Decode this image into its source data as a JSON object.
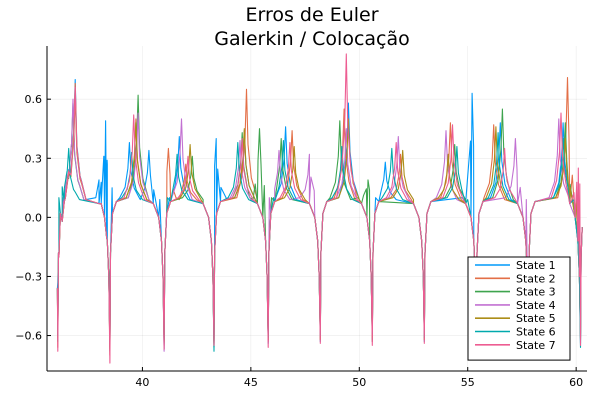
{
  "chart_data": {
    "type": "line",
    "title_line1": "Erros de Euler",
    "title_line2": "Galerkin / Colocação",
    "xlabel": "",
    "ylabel": "",
    "xlim": [
      35.6,
      60.5
    ],
    "ylim": [
      -0.78,
      0.87
    ],
    "x_ticks": [
      40,
      45,
      50,
      55,
      60
    ],
    "x_tick_labels": [
      "40",
      "45",
      "50",
      "55",
      "60"
    ],
    "y_ticks": [
      -0.6,
      -0.3,
      0.0,
      0.3,
      0.6
    ],
    "y_tick_labels": [
      "−0.6",
      "−0.3",
      "0.0",
      "0.3",
      "0.6"
    ],
    "grid": true,
    "legend_position": "bottom-right",
    "series": [
      {
        "name": "State 1",
        "color": "#009AFA",
        "spikes": [
          [
            36.9,
            0.7
          ],
          [
            38.3,
            0.49
          ],
          [
            39.4,
            0.38
          ],
          [
            40.3,
            0.34
          ],
          [
            41.7,
            0.41
          ],
          [
            43.4,
            0.4
          ],
          [
            44.7,
            0.44
          ],
          [
            46.6,
            0.46
          ],
          [
            49.5,
            0.58
          ],
          [
            51.2,
            0.28
          ],
          [
            55.2,
            0.63
          ],
          [
            56.5,
            0.48
          ],
          [
            59.4,
            0.48
          ]
        ],
        "troughs": [
          [
            36.1,
            -0.33
          ],
          [
            38.5,
            -0.68
          ],
          [
            41.0,
            -0.67
          ],
          [
            43.3,
            -0.66
          ],
          [
            45.8,
            -0.64
          ],
          [
            48.2,
            -0.63
          ],
          [
            50.6,
            -0.63
          ],
          [
            53.0,
            -0.63
          ],
          [
            55.4,
            -0.61
          ],
          [
            57.8,
            -0.62
          ],
          [
            60.2,
            -0.64
          ]
        ]
      },
      {
        "name": "State 2",
        "color": "#E36F47",
        "spikes": [
          [
            36.9,
            0.68
          ],
          [
            39.7,
            0.5
          ],
          [
            41.2,
            0.35
          ],
          [
            42.0,
            0.27
          ],
          [
            44.8,
            0.65
          ],
          [
            46.9,
            0.44
          ],
          [
            49.3,
            0.55
          ],
          [
            51.9,
            0.32
          ],
          [
            54.2,
            0.48
          ],
          [
            56.2,
            0.47
          ],
          [
            59.6,
            0.71
          ]
        ],
        "troughs": [
          [
            36.1,
            -0.66
          ],
          [
            38.5,
            -0.7
          ],
          [
            41.0,
            -0.65
          ],
          [
            43.3,
            -0.64
          ],
          [
            45.8,
            -0.63
          ],
          [
            48.2,
            -0.62
          ],
          [
            50.6,
            -0.63
          ],
          [
            53.0,
            -0.62
          ],
          [
            55.4,
            -0.6
          ],
          [
            57.8,
            -0.61
          ],
          [
            60.2,
            -0.62
          ]
        ]
      },
      {
        "name": "State 3",
        "color": "#3EA44E",
        "spikes": [
          [
            36.8,
            0.58
          ],
          [
            39.8,
            0.62
          ],
          [
            42.3,
            0.31
          ],
          [
            44.6,
            0.43
          ],
          [
            45.4,
            0.45
          ],
          [
            46.4,
            0.4
          ],
          [
            49.1,
            0.49
          ],
          [
            50.4,
            0.19
          ],
          [
            54.4,
            0.37
          ],
          [
            56.6,
            0.55
          ],
          [
            59.5,
            0.48
          ]
        ],
        "troughs": [
          [
            36.1,
            -0.63
          ],
          [
            38.5,
            -0.66
          ],
          [
            41.0,
            -0.64
          ],
          [
            43.3,
            -0.63
          ],
          [
            45.8,
            -0.62
          ],
          [
            48.2,
            -0.61
          ],
          [
            50.6,
            -0.62
          ],
          [
            53.0,
            -0.61
          ],
          [
            55.4,
            -0.59
          ],
          [
            57.8,
            -0.6
          ],
          [
            60.2,
            -0.61
          ]
        ]
      },
      {
        "name": "State 4",
        "color": "#C271D2",
        "spikes": [
          [
            36.8,
            0.6
          ],
          [
            39.8,
            0.53
          ],
          [
            41.8,
            0.5
          ],
          [
            44.5,
            0.39
          ],
          [
            46.3,
            0.34
          ],
          [
            47.7,
            0.32
          ],
          [
            49.4,
            0.45
          ],
          [
            51.8,
            0.41
          ],
          [
            54.0,
            0.44
          ],
          [
            57.2,
            0.4
          ],
          [
            59.2,
            0.5
          ]
        ],
        "troughs": [
          [
            36.1,
            -0.62
          ],
          [
            38.5,
            -0.65
          ],
          [
            41.0,
            -0.68
          ],
          [
            43.3,
            -0.62
          ],
          [
            45.8,
            -0.63
          ],
          [
            48.2,
            -0.6
          ],
          [
            50.6,
            -0.6
          ],
          [
            53.0,
            -0.6
          ],
          [
            55.4,
            -0.58
          ],
          [
            57.8,
            -0.59
          ],
          [
            60.2,
            -0.6
          ]
        ]
      },
      {
        "name": "State 5",
        "color": "#AC8D18",
        "spikes": [
          [
            36.9,
            0.62
          ],
          [
            39.7,
            0.48
          ],
          [
            42.2,
            0.37
          ],
          [
            44.7,
            0.45
          ],
          [
            47.0,
            0.36
          ],
          [
            49.5,
            0.5
          ],
          [
            52.0,
            0.34
          ],
          [
            54.1,
            0.32
          ],
          [
            56.3,
            0.46
          ],
          [
            59.5,
            0.4
          ]
        ],
        "troughs": [
          [
            36.1,
            -0.61
          ],
          [
            38.5,
            -0.67
          ],
          [
            41.0,
            -0.63
          ],
          [
            43.3,
            -0.66
          ],
          [
            45.8,
            -0.62
          ],
          [
            48.2,
            -0.62
          ],
          [
            50.6,
            -0.61
          ],
          [
            53.0,
            -0.62
          ],
          [
            55.4,
            -0.6
          ],
          [
            57.8,
            -0.58
          ],
          [
            60.2,
            -0.59
          ]
        ]
      },
      {
        "name": "State 6",
        "color": "#00A9AD",
        "spikes": [
          [
            36.6,
            0.35
          ],
          [
            39.5,
            0.33
          ],
          [
            41.6,
            0.32
          ],
          [
            44.4,
            0.38
          ],
          [
            46.5,
            0.39
          ],
          [
            49.2,
            0.36
          ],
          [
            51.5,
            0.35
          ],
          [
            54.5,
            0.36
          ],
          [
            56.4,
            0.43
          ],
          [
            59.4,
            0.4
          ]
        ],
        "troughs": [
          [
            36.1,
            -0.6
          ],
          [
            38.5,
            -0.64
          ],
          [
            41.0,
            -0.62
          ],
          [
            43.3,
            -0.68
          ],
          [
            45.8,
            -0.61
          ],
          [
            48.2,
            -0.6
          ],
          [
            50.6,
            -0.59
          ],
          [
            53.0,
            -0.61
          ],
          [
            55.4,
            -0.59
          ],
          [
            57.8,
            -0.57
          ],
          [
            60.2,
            -0.66
          ]
        ]
      },
      {
        "name": "State 7",
        "color": "#ED5D92",
        "spikes": [
          [
            36.9,
            0.66
          ],
          [
            39.6,
            0.52
          ],
          [
            42.1,
            0.31
          ],
          [
            44.6,
            0.4
          ],
          [
            46.8,
            0.38
          ],
          [
            49.4,
            0.83
          ],
          [
            51.7,
            0.38
          ],
          [
            54.3,
            0.47
          ],
          [
            56.7,
            0.35
          ],
          [
            59.3,
            0.53
          ],
          [
            60.1,
            0.25
          ]
        ],
        "troughs": [
          [
            36.1,
            -0.68
          ],
          [
            38.5,
            -0.74
          ],
          [
            41.0,
            -0.67
          ],
          [
            43.3,
            -0.65
          ],
          [
            45.8,
            -0.66
          ],
          [
            48.2,
            -0.64
          ],
          [
            50.6,
            -0.65
          ],
          [
            53.0,
            -0.64
          ],
          [
            55.4,
            -0.62
          ],
          [
            57.8,
            -0.63
          ],
          [
            60.2,
            -0.65
          ]
        ]
      }
    ]
  }
}
